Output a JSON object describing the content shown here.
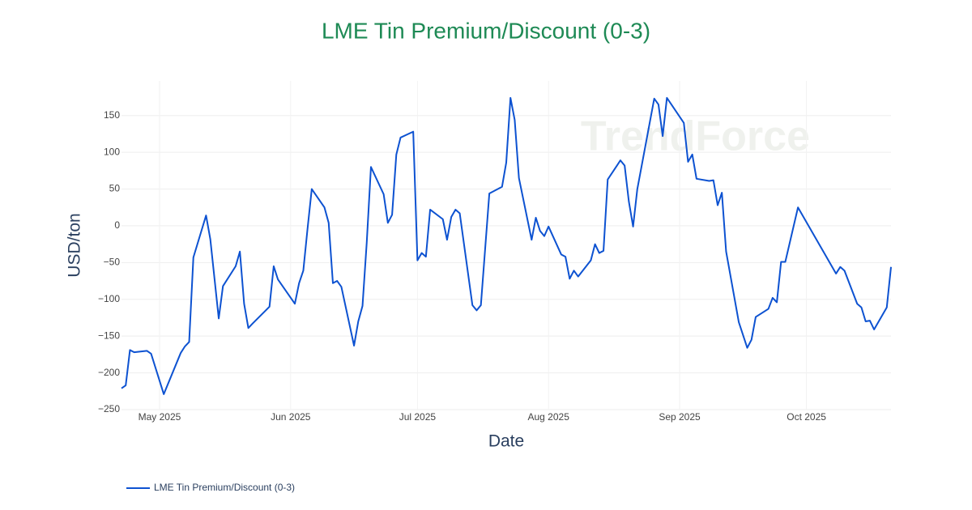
{
  "chart_data": {
    "type": "line",
    "title": "LME Tin Premium/Discount (0-3)",
    "x_label": "Date",
    "y_label": "USD/ton",
    "watermark": "TrendForce",
    "x": [
      "2025-04-22",
      "2025-04-23",
      "2025-04-24",
      "2025-04-25",
      "2025-04-28",
      "2025-04-29",
      "2025-05-02",
      "2025-05-06",
      "2025-05-07",
      "2025-05-08",
      "2025-05-09",
      "2025-05-12",
      "2025-05-13",
      "2025-05-15",
      "2025-05-16",
      "2025-05-19",
      "2025-05-20",
      "2025-05-21",
      "2025-05-22",
      "2025-05-23",
      "2025-05-27",
      "2025-05-28",
      "2025-05-29",
      "2025-06-02",
      "2025-06-03",
      "2025-06-04",
      "2025-06-05",
      "2025-06-06",
      "2025-06-09",
      "2025-06-10",
      "2025-06-11",
      "2025-06-12",
      "2025-06-13",
      "2025-06-16",
      "2025-06-17",
      "2025-06-18",
      "2025-06-19",
      "2025-06-20",
      "2025-06-23",
      "2025-06-24",
      "2025-06-25",
      "2025-06-26",
      "2025-06-27",
      "2025-06-30",
      "2025-07-01",
      "2025-07-02",
      "2025-07-03",
      "2025-07-04",
      "2025-07-07",
      "2025-07-08",
      "2025-07-09",
      "2025-07-10",
      "2025-07-11",
      "2025-07-14",
      "2025-07-15",
      "2025-07-16",
      "2025-07-18",
      "2025-07-21",
      "2025-07-22",
      "2025-07-23",
      "2025-07-24",
      "2025-07-25",
      "2025-07-28",
      "2025-07-29",
      "2025-07-30",
      "2025-07-31",
      "2025-08-01",
      "2025-08-04",
      "2025-08-05",
      "2025-08-06",
      "2025-08-07",
      "2025-08-08",
      "2025-08-11",
      "2025-08-12",
      "2025-08-13",
      "2025-08-14",
      "2025-08-15",
      "2025-08-18",
      "2025-08-19",
      "2025-08-20",
      "2025-08-21",
      "2025-08-22",
      "2025-08-26",
      "2025-08-27",
      "2025-08-28",
      "2025-08-29",
      "2025-09-02",
      "2025-09-03",
      "2025-09-04",
      "2025-09-05",
      "2025-09-08",
      "2025-09-09",
      "2025-09-10",
      "2025-09-11",
      "2025-09-12",
      "2025-09-15",
      "2025-09-17",
      "2025-09-18",
      "2025-09-19",
      "2025-09-22",
      "2025-09-23",
      "2025-09-24",
      "2025-09-25",
      "2025-09-26",
      "2025-09-29",
      "2025-10-08",
      "2025-10-09",
      "2025-10-10",
      "2025-10-13",
      "2025-10-14",
      "2025-10-15",
      "2025-10-16",
      "2025-10-17",
      "2025-10-20",
      "2025-10-21"
    ],
    "series": [
      {
        "name": "LME Tin Premium/Discount (0-3)",
        "color": "#0d52d1",
        "values": [
          -221,
          -217,
          -169,
          -172,
          -170,
          -174,
          -229,
          -173,
          -164,
          -158,
          -43,
          14,
          -18,
          -126,
          -82,
          -55,
          -35,
          -106,
          -139,
          -133,
          -110,
          -55,
          -73,
          -106,
          -78,
          -61,
          -4,
          50,
          25,
          4,
          -78,
          -75,
          -83,
          -163,
          -130,
          -109,
          -23,
          80,
          43,
          4,
          15,
          97,
          120,
          128,
          -47,
          -37,
          -42,
          22,
          9,
          -19,
          12,
          22,
          17,
          -108,
          -115,
          -108,
          44,
          53,
          86,
          174,
          144,
          65,
          -19,
          11,
          -7,
          -14,
          -1,
          -39,
          -42,
          -72,
          -61,
          -69,
          -47,
          -25,
          -37,
          -34,
          63,
          89,
          82,
          33,
          -1,
          50,
          173,
          165,
          122,
          174,
          140,
          87,
          97,
          64,
          61,
          62,
          28,
          45,
          -35,
          -131,
          -166,
          -155,
          -124,
          -113,
          -98,
          -104,
          -49,
          -49,
          25,
          -65,
          -56,
          -61,
          -106,
          -111,
          -130,
          -129,
          -141,
          -111,
          -56
        ]
      }
    ],
    "xlim": [
      "2025-04-22",
      "2025-10-21"
    ],
    "xticks": [
      {
        "value": "2025-05-01",
        "label": "May 2025"
      },
      {
        "value": "2025-06-01",
        "label": "Jun 2025"
      },
      {
        "value": "2025-07-01",
        "label": "Jul 2025"
      },
      {
        "value": "2025-08-01",
        "label": "Aug 2025"
      },
      {
        "value": "2025-09-01",
        "label": "Sep 2025"
      },
      {
        "value": "2025-10-01",
        "label": "Oct 2025"
      }
    ],
    "ylim": [
      -250,
      197
    ],
    "yticks": [
      {
        "value": -250,
        "label": "−250"
      },
      {
        "value": -200,
        "label": "−200"
      },
      {
        "value": -150,
        "label": "−150"
      },
      {
        "value": -100,
        "label": "−100"
      },
      {
        "value": -50,
        "label": "−50"
      },
      0,
      50,
      100,
      150
    ],
    "grid": true
  }
}
